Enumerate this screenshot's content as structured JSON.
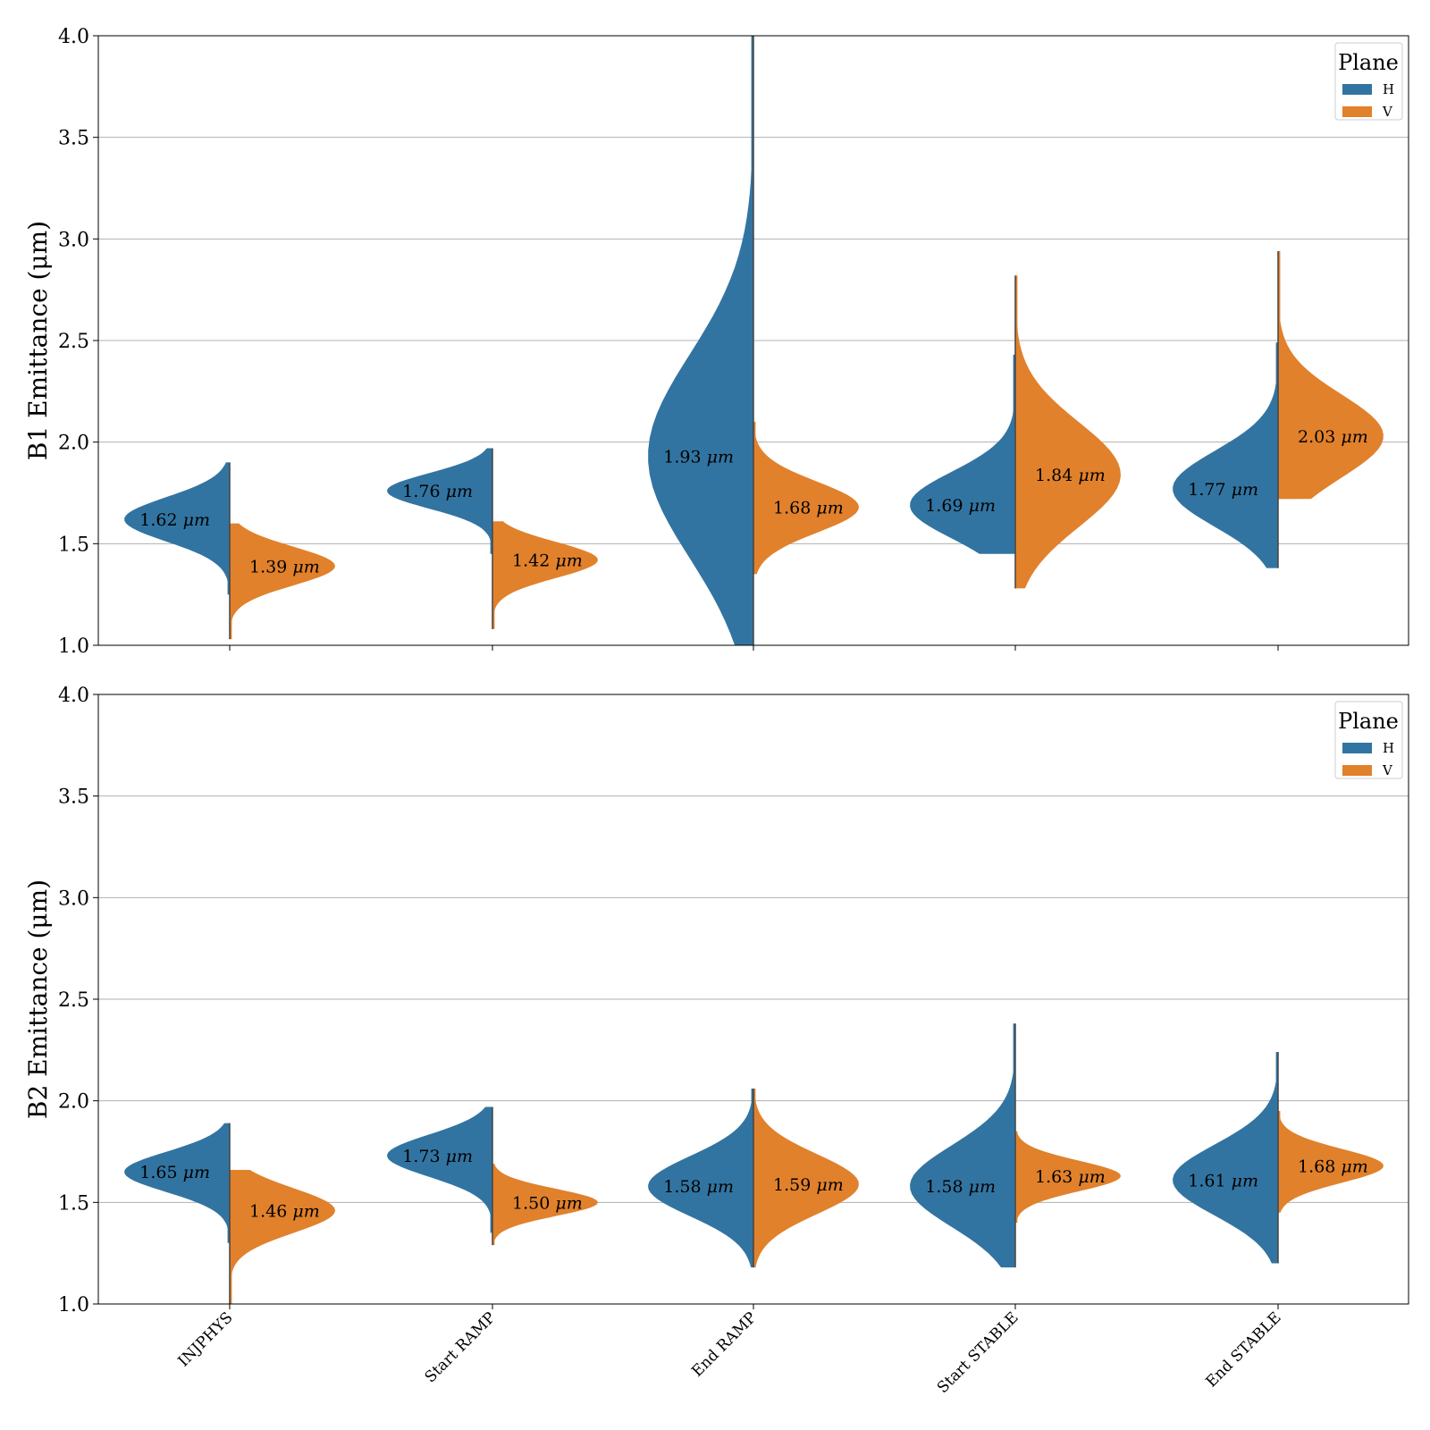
{
  "chart_data": {
    "type": "violin",
    "categories": [
      "INJPHYS",
      "Start RAMP",
      "End RAMP",
      "Start STABLE",
      "End STABLE"
    ],
    "ylim": [
      1.0,
      4.0
    ],
    "yticks": [
      "1.0",
      "1.5",
      "2.0",
      "2.5",
      "3.0",
      "3.5",
      "4.0"
    ],
    "grid": "horizontal",
    "legend": {
      "title": "Plane",
      "placement": "top-right",
      "entries": [
        "H",
        "V"
      ]
    },
    "colors": {
      "H": "#3274a1",
      "V": "#e1812c"
    },
    "unit_label": "μm",
    "panels": [
      {
        "ylabel": "B1 Emittance (μm)",
        "series": [
          {
            "name": "H",
            "medians": [
              1.62,
              1.76,
              1.93,
              1.69,
              1.77
            ],
            "labels": [
              "1.62",
              "1.76",
              "1.93",
              "1.69",
              "1.77"
            ],
            "mins": [
              1.25,
              1.45,
              0.99,
              1.45,
              1.38
            ],
            "maxs": [
              1.9,
              1.97,
              4.0,
              2.43,
              2.49
            ]
          },
          {
            "name": "V",
            "medians": [
              1.39,
              1.42,
              1.68,
              1.84,
              2.03
            ],
            "labels": [
              "1.39",
              "1.42",
              "1.68",
              "1.84",
              "2.03"
            ],
            "mins": [
              1.03,
              1.08,
              1.35,
              1.28,
              1.72
            ],
            "maxs": [
              1.6,
              1.61,
              2.1,
              2.82,
              2.94
            ]
          }
        ]
      },
      {
        "ylabel": "B2 Emittance (μm)",
        "series": [
          {
            "name": "H",
            "medians": [
              1.65,
              1.73,
              1.58,
              1.58,
              1.61
            ],
            "labels": [
              "1.65",
              "1.73",
              "1.58",
              "1.58",
              "1.61"
            ],
            "mins": [
              1.3,
              1.35,
              1.18,
              1.18,
              1.2
            ],
            "maxs": [
              1.89,
              1.97,
              2.06,
              2.38,
              2.24
            ]
          },
          {
            "name": "V",
            "medians": [
              1.46,
              1.5,
              1.59,
              1.63,
              1.68
            ],
            "labels": [
              "1.46",
              "1.50",
              "1.59",
              "1.63",
              "1.68"
            ],
            "mins": [
              1.0,
              1.29,
              1.18,
              1.4,
              1.45
            ],
            "maxs": [
              1.66,
              1.69,
              2.06,
              1.85,
              1.95
            ]
          }
        ]
      }
    ]
  }
}
